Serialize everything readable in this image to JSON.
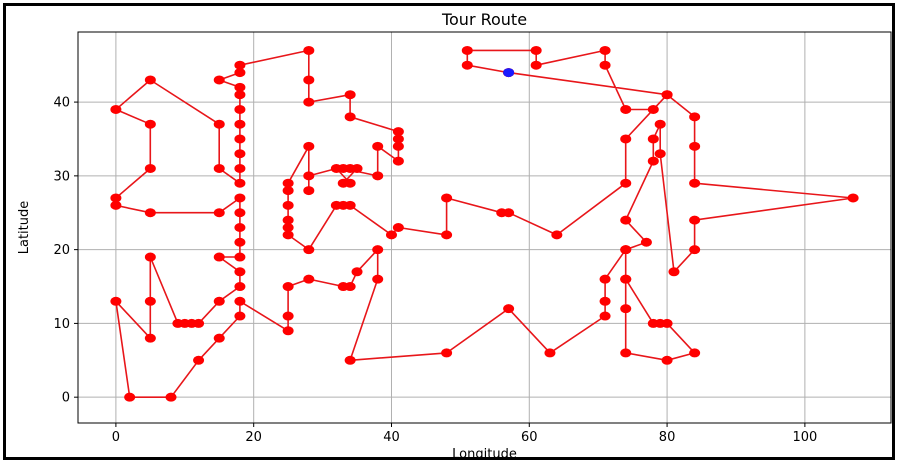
{
  "chart_data": {
    "type": "line",
    "title": "Tour Route",
    "xlabel": "Longitude",
    "ylabel": "Latitude",
    "xlim": [
      -5.5,
      112.5
    ],
    "ylim": [
      -3.5,
      49.5
    ],
    "xticks": [
      0,
      20,
      40,
      60,
      80,
      100
    ],
    "yticks": [
      0,
      10,
      20,
      30,
      40
    ],
    "grid": true,
    "colors": {
      "route": "#e8161a",
      "marker": "#ff0000",
      "start": "#1a1aff"
    },
    "start": {
      "x": 57,
      "y": 44
    },
    "series": [
      {
        "values": [
          [
            57,
            44
          ],
          [
            51,
            45
          ],
          [
            51,
            47
          ],
          [
            61,
            47
          ],
          [
            61,
            45
          ],
          [
            71,
            47
          ],
          [
            71,
            45
          ],
          [
            74,
            39
          ],
          [
            78,
            39
          ],
          [
            80,
            41
          ],
          [
            84,
            38
          ],
          [
            84,
            34
          ],
          [
            84,
            29
          ],
          [
            107,
            27
          ],
          [
            84,
            24
          ],
          [
            84,
            20
          ],
          [
            81,
            17
          ],
          [
            79,
            33
          ],
          [
            79,
            37
          ],
          [
            78,
            35
          ],
          [
            78,
            32
          ],
          [
            74,
            24
          ],
          [
            77,
            21
          ],
          [
            74,
            20
          ],
          [
            74,
            16
          ],
          [
            74,
            12
          ],
          [
            74,
            6
          ],
          [
            80,
            5
          ],
          [
            84,
            6
          ],
          [
            80,
            10
          ],
          [
            79,
            10
          ],
          [
            78,
            10
          ],
          [
            74,
            16
          ],
          [
            74,
            20
          ],
          [
            71,
            16
          ],
          [
            71,
            13
          ],
          [
            71,
            11
          ],
          [
            63,
            6
          ],
          [
            57,
            12
          ],
          [
            48,
            6
          ],
          [
            34,
            5
          ],
          [
            38,
            16
          ],
          [
            38,
            20
          ],
          [
            35,
            17
          ],
          [
            34,
            15
          ],
          [
            33,
            15
          ],
          [
            28,
            16
          ],
          [
            25,
            15
          ],
          [
            25,
            11
          ],
          [
            25,
            9
          ],
          [
            18,
            13
          ],
          [
            18,
            11
          ],
          [
            15,
            8
          ],
          [
            12,
            5
          ],
          [
            8,
            0
          ],
          [
            2,
            0
          ],
          [
            0,
            13
          ],
          [
            5,
            8
          ],
          [
            5,
            13
          ],
          [
            5,
            19
          ],
          [
            9,
            10
          ],
          [
            10,
            10
          ],
          [
            11,
            10
          ],
          [
            12,
            10
          ],
          [
            15,
            13
          ],
          [
            18,
            15
          ],
          [
            18,
            17
          ],
          [
            15,
            19
          ],
          [
            18,
            19
          ],
          [
            18,
            21
          ],
          [
            18,
            23
          ],
          [
            18,
            25
          ],
          [
            18,
            27
          ],
          [
            15,
            25
          ],
          [
            5,
            25
          ],
          [
            0,
            26
          ],
          [
            0,
            27
          ],
          [
            5,
            31
          ],
          [
            5,
            37
          ],
          [
            0,
            39
          ],
          [
            5,
            43
          ],
          [
            15,
            37
          ],
          [
            15,
            31
          ],
          [
            18,
            29
          ],
          [
            18,
            31
          ],
          [
            18,
            33
          ],
          [
            18,
            35
          ],
          [
            18,
            37
          ],
          [
            18,
            39
          ],
          [
            18,
            41
          ],
          [
            18,
            42
          ],
          [
            15,
            43
          ],
          [
            18,
            44
          ],
          [
            18,
            45
          ],
          [
            28,
            47
          ],
          [
            28,
            43
          ],
          [
            28,
            40
          ],
          [
            34,
            41
          ],
          [
            34,
            38
          ],
          [
            41,
            36
          ],
          [
            41,
            35
          ],
          [
            41,
            34
          ],
          [
            41,
            32
          ],
          [
            38,
            34
          ],
          [
            38,
            30
          ],
          [
            33,
            31
          ],
          [
            34,
            31
          ],
          [
            35,
            31
          ],
          [
            33,
            29
          ],
          [
            34,
            29
          ],
          [
            32,
            31
          ],
          [
            28,
            30
          ],
          [
            28,
            28
          ],
          [
            28,
            34
          ],
          [
            25,
            29
          ],
          [
            25,
            28
          ],
          [
            25,
            26
          ],
          [
            25,
            24
          ],
          [
            25,
            23
          ],
          [
            25,
            22
          ],
          [
            28,
            20
          ],
          [
            32,
            26
          ],
          [
            33,
            26
          ],
          [
            34,
            26
          ],
          [
            40,
            22
          ],
          [
            41,
            23
          ],
          [
            48,
            22
          ],
          [
            48,
            27
          ],
          [
            56,
            25
          ],
          [
            57,
            25
          ],
          [
            64,
            22
          ],
          [
            74,
            29
          ],
          [
            74,
            35
          ],
          [
            80,
            41
          ],
          [
            57,
            44
          ]
        ]
      }
    ]
  }
}
